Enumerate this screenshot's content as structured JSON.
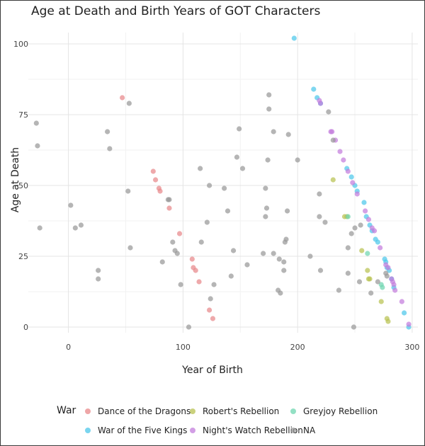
{
  "chart_data": {
    "type": "scatter",
    "title": "Age at Death and Birth Years of GOT Characters",
    "xlabel": "Year of Birth",
    "ylabel": "Age at Death",
    "xlim": [
      -35,
      305
    ],
    "ylim": [
      -2,
      104
    ],
    "xticks": [
      0,
      100,
      200,
      300
    ],
    "yticks": [
      0,
      25,
      50,
      75,
      100
    ],
    "grid": true,
    "legend_position": "bottom",
    "legend_title": "War",
    "series": [
      {
        "name": "Dance of the Dragons",
        "color": "#e8888a",
        "points": [
          [
            47,
            81
          ],
          [
            74,
            55
          ],
          [
            76,
            52
          ],
          [
            79,
            49
          ],
          [
            80,
            48
          ],
          [
            88,
            42
          ],
          [
            97,
            33
          ],
          [
            108,
            24
          ],
          [
            109,
            21
          ],
          [
            111,
            20
          ],
          [
            114,
            16
          ],
          [
            123,
            6
          ],
          [
            126,
            3
          ]
        ]
      },
      {
        "name": "Robert's Rebellion",
        "color": "#b8c252",
        "points": [
          [
            231,
            52
          ],
          [
            241,
            39
          ],
          [
            243,
            39
          ],
          [
            256,
            27
          ],
          [
            261,
            20
          ],
          [
            262,
            17
          ],
          [
            263,
            17
          ],
          [
            273,
            9
          ],
          [
            278,
            3
          ],
          [
            279,
            2
          ]
        ]
      },
      {
        "name": "Greyjoy Rebellion",
        "color": "#6fd6b0",
        "points": [
          [
            244,
            39
          ],
          [
            261,
            26
          ],
          [
            273,
            15
          ],
          [
            274,
            14
          ]
        ]
      },
      {
        "name": "War of the Five Kings",
        "color": "#4ec7ea",
        "points": [
          [
            197,
            102
          ],
          [
            214,
            84
          ],
          [
            217,
            81
          ],
          [
            220,
            79
          ],
          [
            243,
            56
          ],
          [
            247,
            53
          ],
          [
            250,
            50
          ],
          [
            252,
            48
          ],
          [
            258,
            44
          ],
          [
            260,
            39
          ],
          [
            263,
            36
          ],
          [
            265,
            34
          ],
          [
            268,
            31
          ],
          [
            270,
            30
          ],
          [
            276,
            24
          ],
          [
            277,
            23
          ],
          [
            278,
            21
          ],
          [
            280,
            20
          ],
          [
            282,
            17
          ],
          [
            284,
            14
          ],
          [
            293,
            5
          ],
          [
            297,
            0
          ]
        ]
      },
      {
        "name": "Night's Watch Rebellion",
        "color": "#c37ddc",
        "points": [
          [
            219,
            80
          ],
          [
            220,
            79
          ],
          [
            229,
            69
          ],
          [
            230,
            69
          ],
          [
            233,
            66
          ],
          [
            237,
            62
          ],
          [
            240,
            59
          ],
          [
            244,
            55
          ],
          [
            248,
            51
          ],
          [
            252,
            47
          ],
          [
            259,
            41
          ],
          [
            262,
            38
          ],
          [
            265,
            35
          ],
          [
            267,
            34
          ],
          [
            272,
            28
          ],
          [
            277,
            22
          ],
          [
            279,
            21
          ],
          [
            282,
            17
          ],
          [
            283,
            16
          ],
          [
            284,
            15
          ],
          [
            285,
            13
          ],
          [
            291,
            9
          ],
          [
            297,
            1
          ]
        ]
      },
      {
        "name": "NA",
        "color": "#999999",
        "points": [
          [
            -28,
            72
          ],
          [
            -27,
            64
          ],
          [
            -25,
            35
          ],
          [
            2,
            43
          ],
          [
            6,
            35
          ],
          [
            11,
            36
          ],
          [
            26,
            17
          ],
          [
            26,
            20
          ],
          [
            34,
            69
          ],
          [
            36,
            63
          ],
          [
            52,
            48
          ],
          [
            53,
            79
          ],
          [
            54,
            28
          ],
          [
            82,
            23
          ],
          [
            87,
            45
          ],
          [
            88,
            45
          ],
          [
            91,
            30
          ],
          [
            93,
            27
          ],
          [
            95,
            26
          ],
          [
            98,
            15
          ],
          [
            105,
            0
          ],
          [
            115,
            56
          ],
          [
            116,
            30
          ],
          [
            121,
            37
          ],
          [
            123,
            50
          ],
          [
            124,
            10
          ],
          [
            127,
            15
          ],
          [
            136,
            49
          ],
          [
            139,
            41
          ],
          [
            142,
            18
          ],
          [
            144,
            27
          ],
          [
            147,
            60
          ],
          [
            149,
            70
          ],
          [
            152,
            56
          ],
          [
            156,
            22
          ],
          [
            170,
            26
          ],
          [
            172,
            49
          ],
          [
            172,
            39
          ],
          [
            173,
            42
          ],
          [
            174,
            59
          ],
          [
            175,
            82
          ],
          [
            175,
            77
          ],
          [
            179,
            26
          ],
          [
            179,
            69
          ],
          [
            183,
            13
          ],
          [
            184,
            24
          ],
          [
            185,
            12
          ],
          [
            188,
            20
          ],
          [
            188,
            23
          ],
          [
            189,
            30
          ],
          [
            190,
            31
          ],
          [
            191,
            41
          ],
          [
            192,
            68
          ],
          [
            200,
            59
          ],
          [
            211,
            25
          ],
          [
            219,
            47
          ],
          [
            219,
            39
          ],
          [
            220,
            20
          ],
          [
            224,
            37
          ],
          [
            227,
            76
          ],
          [
            231,
            66
          ],
          [
            236,
            13
          ],
          [
            244,
            19
          ],
          [
            244,
            28
          ],
          [
            247,
            33
          ],
          [
            249,
            0
          ],
          [
            250,
            35
          ],
          [
            254,
            16
          ],
          [
            255,
            36
          ],
          [
            264,
            12
          ],
          [
            270,
            16
          ],
          [
            277,
            19
          ],
          [
            278,
            18
          ]
        ]
      }
    ]
  }
}
